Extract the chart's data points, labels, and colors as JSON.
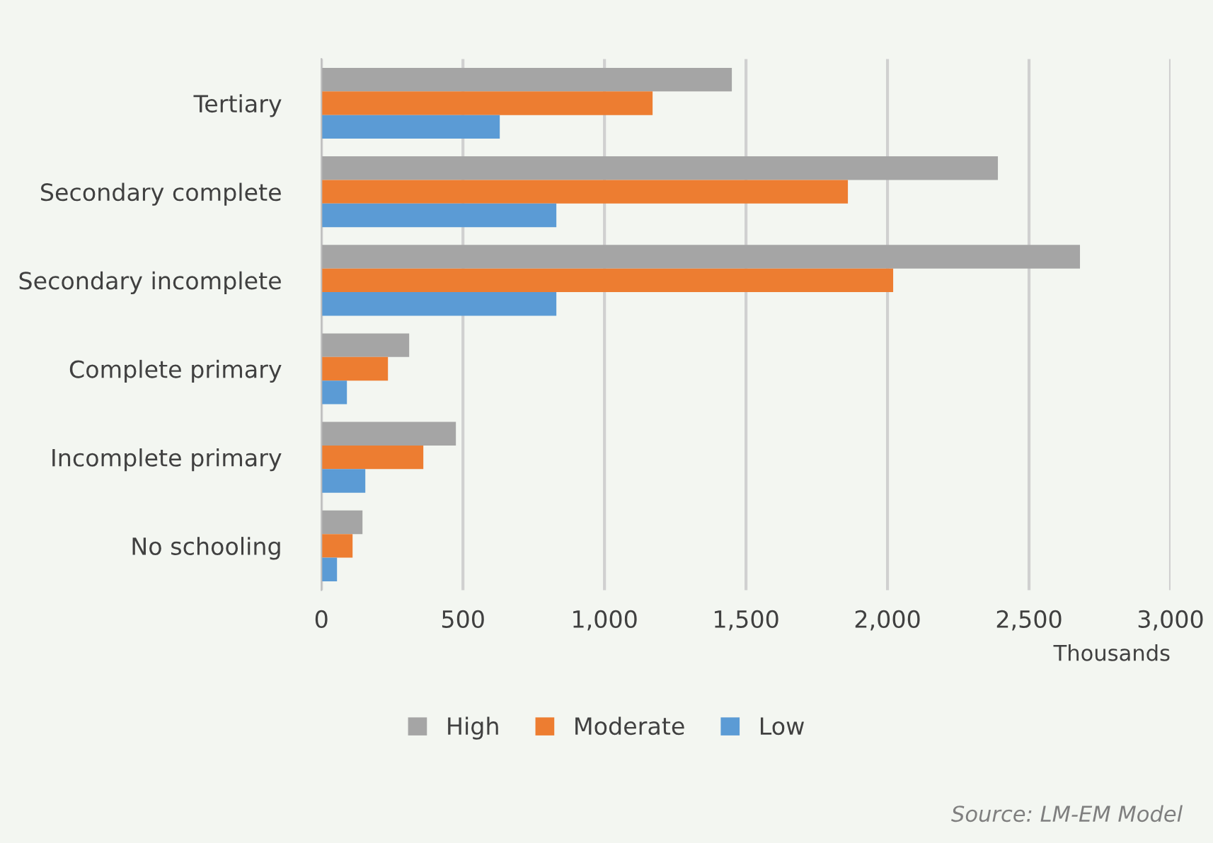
{
  "chart_data": {
    "type": "bar",
    "orientation": "horizontal",
    "xlabel": "Thousands",
    "categories": [
      "Tertiary",
      "Secondary complete",
      "Secondary incomplete",
      "Complete primary",
      "Incomplete primary",
      "No schooling"
    ],
    "series": [
      {
        "name": "High",
        "color": "#a5a5a5",
        "values": [
          1450,
          2390,
          2680,
          310,
          475,
          145
        ]
      },
      {
        "name": "Moderate",
        "color": "#ed7d31",
        "values": [
          1170,
          1860,
          2020,
          235,
          360,
          110
        ]
      },
      {
        "name": "Low",
        "color": "#5b9bd5",
        "values": [
          630,
          830,
          830,
          90,
          155,
          55
        ]
      }
    ],
    "xlim": [
      0,
      3000
    ],
    "xticks": [
      {
        "value": 0,
        "label": "0"
      },
      {
        "value": 500,
        "label": "500"
      },
      {
        "value": 1000,
        "label": "1,000"
      },
      {
        "value": 1500,
        "label": "1,500"
      },
      {
        "value": 2000,
        "label": "2,000"
      },
      {
        "value": 2500,
        "label": "2,500"
      },
      {
        "value": 3000,
        "label": "3,000"
      }
    ],
    "grid": "x",
    "legend": "bottom",
    "annotations": [
      "Source: LM-EM Model"
    ]
  }
}
